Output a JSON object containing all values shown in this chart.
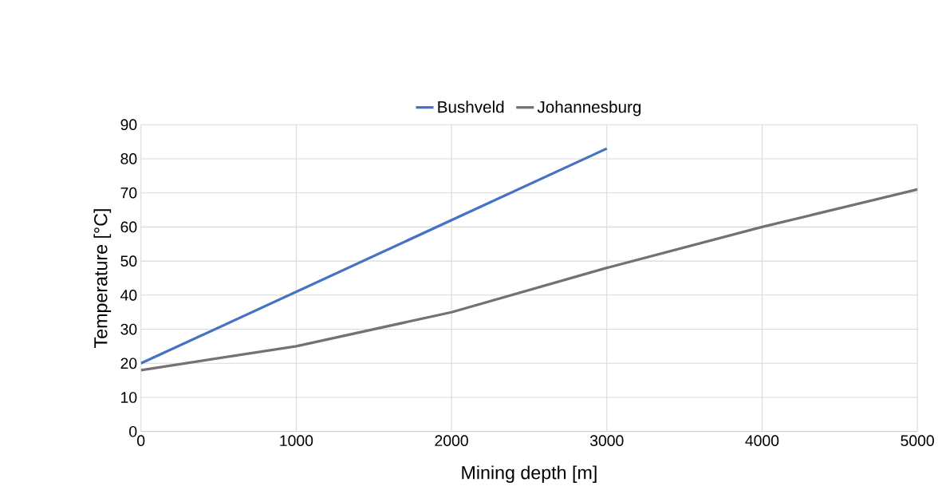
{
  "chart_data": {
    "type": "line",
    "xlabel": "Mining depth [m]",
    "ylabel": "Temperature [°C]",
    "series": [
      {
        "name": "Bushveld",
        "color": "#4472c4",
        "x": [
          0,
          1000,
          2000,
          3000
        ],
        "values": [
          20,
          41,
          62,
          83
        ]
      },
      {
        "name": "Johannesburg",
        "color": "#767171",
        "x": [
          0,
          1000,
          2000,
          3000,
          4000,
          5000
        ],
        "values": [
          18,
          25,
          35,
          48,
          60,
          71
        ]
      }
    ],
    "xlim": [
      0,
      5000
    ],
    "ylim": [
      0,
      90
    ],
    "xticks": [
      0,
      1000,
      2000,
      3000,
      4000,
      5000
    ],
    "yticks": [
      0,
      10,
      20,
      30,
      40,
      50,
      60,
      70,
      80,
      90
    ],
    "grid": true,
    "legend": "top",
    "marker": "none",
    "line_style": "solid"
  }
}
